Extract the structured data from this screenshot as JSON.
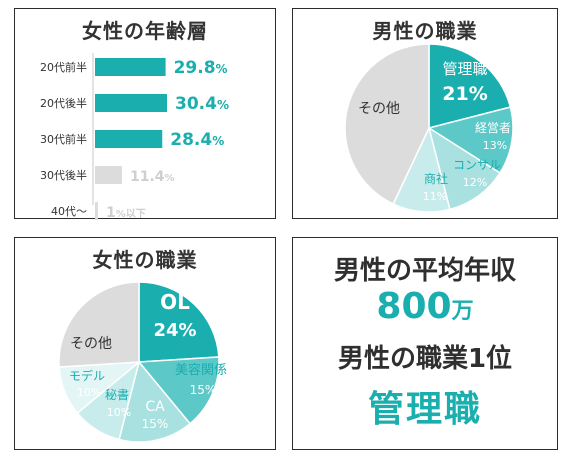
{
  "colors": {
    "accent": "#1aaeae",
    "mid": "#5cc8c8",
    "light": "#a9e0e0",
    "lighter": "#c8ecec",
    "gray": "#dcdcdc",
    "text": "#333333"
  },
  "chart_data": [
    {
      "type": "bar",
      "title": "女性の年齢層",
      "categories": [
        "20代前半",
        "20代後半",
        "30代前半",
        "30代後半",
        "40代〜"
      ],
      "values": [
        29.8,
        30.4,
        28.4,
        11.4,
        1
      ],
      "value_labels": [
        "29.8",
        "30.4",
        "28.4",
        "11.4",
        "1"
      ],
      "value_suffixes": [
        "%",
        "%",
        "%",
        "%",
        "%以下"
      ],
      "orientation": "horizontal",
      "highlight": [
        true,
        true,
        true,
        false,
        false
      ]
    },
    {
      "type": "pie",
      "title": "男性の職業",
      "labels": [
        "管理職",
        "経営者",
        "コンサル",
        "商社",
        "その他"
      ],
      "values": [
        21,
        13,
        12,
        11,
        43
      ],
      "value_labels": [
        "21",
        "13",
        "12",
        "11",
        ""
      ]
    },
    {
      "type": "pie",
      "title": "女性の職業",
      "labels": [
        "OL",
        "美容関係",
        "CA",
        "秘書",
        "モデル",
        "その他"
      ],
      "values": [
        24,
        15,
        15,
        10,
        10,
        26
      ],
      "value_labels": [
        "24",
        "15",
        "15",
        "10",
        "10",
        ""
      ]
    }
  ],
  "summary": {
    "line1": "男性の平均年収",
    "income_value": "800",
    "income_unit": "万",
    "line3": "男性の職業1位",
    "top_job": "管理職"
  }
}
